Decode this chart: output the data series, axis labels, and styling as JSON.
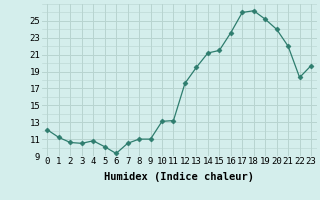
{
  "x": [
    0,
    1,
    2,
    3,
    4,
    5,
    6,
    7,
    8,
    9,
    10,
    11,
    12,
    13,
    14,
    15,
    16,
    17,
    18,
    19,
    20,
    21,
    22,
    23
  ],
  "y": [
    12.1,
    11.2,
    10.6,
    10.5,
    10.8,
    10.1,
    9.3,
    10.5,
    11.0,
    11.0,
    13.1,
    13.2,
    17.6,
    19.5,
    21.2,
    21.5,
    23.6,
    26.0,
    26.2,
    25.2,
    24.0,
    22.0,
    18.3,
    19.7
  ],
  "line_color": "#2e7d6e",
  "marker": "D",
  "marker_size": 2.5,
  "bg_color": "#d4eeec",
  "grid_color": "#b8d4d0",
  "xlabel": "Humidex (Indice chaleur)",
  "ylim": [
    9,
    27
  ],
  "xlim": [
    -0.5,
    23.5
  ],
  "yticks": [
    9,
    11,
    13,
    15,
    17,
    19,
    21,
    23,
    25
  ],
  "xtick_labels": [
    "0",
    "1",
    "2",
    "3",
    "4",
    "5",
    "6",
    "7",
    "8",
    "9",
    "10",
    "11",
    "12",
    "13",
    "14",
    "15",
    "16",
    "17",
    "18",
    "19",
    "20",
    "21",
    "22",
    "23"
  ],
  "xlabel_fontsize": 7.5,
  "tick_fontsize": 6.5
}
